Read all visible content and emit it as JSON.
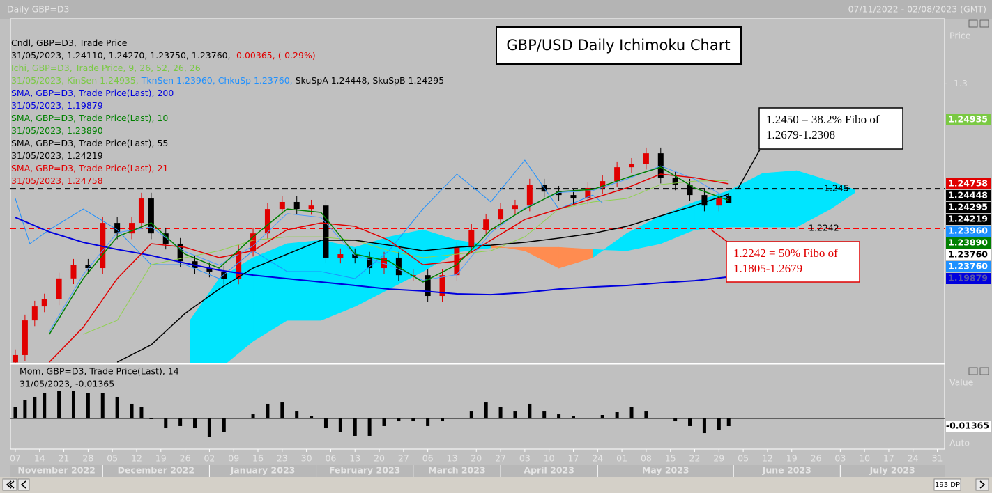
{
  "chart_data": {
    "type": "candlestick",
    "header": {
      "left": "Daily GBP=D3",
      "right": "07/11/2022 - 02/08/2023 (GMT)"
    },
    "title": "GBP/USD Daily Ichimoku Chart",
    "xlim": [
      -1,
      191.5
    ],
    "ylim": [
      1.1534,
      1.3341
    ],
    "yticks": [
      1.3
    ],
    "axis_texts": {
      "price": "Price",
      "value": "Value",
      "auto": "Auto",
      "points": "193 DP"
    },
    "xticks": [
      {
        "value": 0,
        "label": "07"
      },
      {
        "value": 5,
        "label": "14"
      },
      {
        "value": 10,
        "label": "21"
      },
      {
        "value": 15,
        "label": "28"
      },
      {
        "value": 20,
        "label": "05"
      },
      {
        "value": 25,
        "label": "12"
      },
      {
        "value": 30,
        "label": "19"
      },
      {
        "value": 35,
        "label": "26"
      },
      {
        "value": 40,
        "label": "02"
      },
      {
        "value": 45,
        "label": "09"
      },
      {
        "value": 50,
        "label": "16"
      },
      {
        "value": 55,
        "label": "23"
      },
      {
        "value": 60,
        "label": "30"
      },
      {
        "value": 65,
        "label": "06"
      },
      {
        "value": 70,
        "label": "13"
      },
      {
        "value": 75,
        "label": "20"
      },
      {
        "value": 80,
        "label": "27"
      },
      {
        "value": 85,
        "label": "06"
      },
      {
        "value": 90,
        "label": "13"
      },
      {
        "value": 95,
        "label": "20"
      },
      {
        "value": 100,
        "label": "27"
      },
      {
        "value": 105,
        "label": "03"
      },
      {
        "value": 110,
        "label": "10"
      },
      {
        "value": 115,
        "label": "17"
      },
      {
        "value": 120,
        "label": "24"
      },
      {
        "value": 125,
        "label": "01"
      },
      {
        "value": 130,
        "label": "08"
      },
      {
        "value": 135,
        "label": "15"
      },
      {
        "value": 140,
        "label": "22"
      },
      {
        "value": 145,
        "label": "29"
      },
      {
        "value": 150,
        "label": "05"
      },
      {
        "value": 155,
        "label": "12"
      },
      {
        "value": 160,
        "label": "19"
      },
      {
        "value": 165,
        "label": "26"
      },
      {
        "value": 170,
        "label": "03"
      },
      {
        "value": 175,
        "label": "10"
      },
      {
        "value": 180,
        "label": "17"
      },
      {
        "value": 185,
        "label": "24"
      },
      {
        "value": 190,
        "label": "31"
      }
    ],
    "months": [
      {
        "label": "November 2022",
        "start": -1
      },
      {
        "label": "December 2022",
        "start": 18
      },
      {
        "label": "January 2023",
        "start": 40
      },
      {
        "label": "February 2023",
        "start": 62
      },
      {
        "label": "March 2023",
        "start": 82
      },
      {
        "label": "April 2023",
        "start": 100
      },
      {
        "label": "May 2023",
        "start": 120
      },
      {
        "label": "June 2023",
        "start": 148
      },
      {
        "label": "July 2023",
        "start": 170
      }
    ],
    "candles": {
      "up_color": "#e00000",
      "down_color": "#000000",
      "x": [
        0,
        2,
        4,
        6,
        9,
        12,
        15,
        18,
        21,
        24,
        26,
        28,
        31,
        34,
        37,
        40,
        43,
        46,
        49,
        52,
        55,
        58,
        61,
        64,
        67,
        70,
        73,
        76,
        79,
        82,
        85,
        88,
        91,
        94,
        97,
        100,
        103,
        106,
        109,
        112,
        115,
        118,
        121,
        124,
        127,
        130,
        133,
        136,
        139,
        142,
        145,
        147
      ],
      "open": [
        1.154,
        1.1578,
        1.176,
        1.1833,
        1.187,
        1.198,
        1.2052,
        1.2034,
        1.2271,
        1.2216,
        1.2271,
        1.2399,
        1.2216,
        1.2162,
        1.207,
        1.2034,
        1.2016,
        1.1979,
        1.2125,
        1.2216,
        1.2344,
        1.2381,
        1.2344,
        1.2362,
        1.2089,
        1.2107,
        1.2089,
        1.2034,
        1.2089,
        1.1997,
        1.1997,
        1.1888,
        1.1997,
        1.2143,
        1.2235,
        1.2289,
        1.2344,
        1.2362,
        1.2472,
        1.2435,
        1.2417,
        1.2399,
        1.2454,
        1.249,
        1.2563,
        1.2581,
        1.2636,
        1.2508,
        1.2472,
        1.2417,
        1.2362,
        1.2411
      ],
      "high": [
        1.1608,
        1.179,
        1.1863,
        1.19,
        1.201,
        1.2082,
        1.2082,
        1.2301,
        1.2301,
        1.2301,
        1.2429,
        1.2429,
        1.2246,
        1.2192,
        1.21,
        1.2064,
        1.2046,
        1.2155,
        1.2246,
        1.2374,
        1.2411,
        1.2411,
        1.2392,
        1.2392,
        1.2137,
        1.2137,
        1.2119,
        1.2119,
        1.2119,
        1.2027,
        1.2027,
        1.2027,
        1.2173,
        1.2265,
        1.2319,
        1.2374,
        1.2392,
        1.2502,
        1.2502,
        1.2465,
        1.2447,
        1.2484,
        1.252,
        1.2593,
        1.2611,
        1.2666,
        1.2666,
        1.2538,
        1.2502,
        1.2447,
        1.2429,
        1.2427
      ],
      "low": [
        1.151,
        1.1548,
        1.173,
        1.1803,
        1.184,
        1.195,
        1.2004,
        1.2004,
        1.2186,
        1.2186,
        1.2241,
        1.2186,
        1.2132,
        1.204,
        1.2004,
        1.1986,
        1.1949,
        1.1949,
        1.2095,
        1.2186,
        1.2314,
        1.2314,
        1.2314,
        1.2059,
        1.2059,
        1.2059,
        1.2004,
        1.2004,
        1.1967,
        1.1967,
        1.1858,
        1.1858,
        1.1967,
        1.2113,
        1.2205,
        1.2259,
        1.2314,
        1.2332,
        1.2405,
        1.2387,
        1.2369,
        1.2369,
        1.2424,
        1.246,
        1.2533,
        1.2551,
        1.2478,
        1.2442,
        1.2387,
        1.2332,
        1.2332,
        1.2375
      ],
      "close": [
        1.1578,
        1.176,
        1.1833,
        1.187,
        1.198,
        1.2052,
        1.2034,
        1.2271,
        1.2216,
        1.2271,
        1.2399,
        1.2216,
        1.2162,
        1.207,
        1.2034,
        1.2016,
        1.1979,
        1.2125,
        1.2216,
        1.2344,
        1.2381,
        1.2344,
        1.2362,
        1.2089,
        1.2107,
        1.2089,
        1.2034,
        1.2089,
        1.1997,
        1.1997,
        1.1888,
        1.1997,
        1.2143,
        1.2235,
        1.2289,
        1.2344,
        1.2362,
        1.2472,
        1.2435,
        1.2417,
        1.2399,
        1.2454,
        1.249,
        1.2563,
        1.2581,
        1.2636,
        1.2508,
        1.2472,
        1.2417,
        1.2362,
        1.2399,
        1.2376
      ]
    },
    "cloud": {
      "up_color": "#00e5ff",
      "down_color": "#ff8c50",
      "x": [
        36,
        42,
        49,
        56,
        63,
        70,
        77,
        84,
        91,
        98,
        105,
        112,
        119,
        126,
        133,
        140,
        147,
        154,
        161,
        168,
        173
      ],
      "span_a": [
        1.176,
        1.1979,
        1.2089,
        1.2162,
        1.218,
        1.2143,
        1.2198,
        1.2235,
        1.218,
        1.2154,
        1.2125,
        1.2034,
        1.2089,
        1.2216,
        1.2308,
        1.2381,
        1.2439,
        1.2531,
        1.2545,
        1.249,
        1.24448
      ],
      "span_b": [
        1.1468,
        1.1505,
        1.1651,
        1.176,
        1.176,
        1.1833,
        1.1924,
        1.2016,
        1.2118,
        1.214,
        1.2143,
        1.2143,
        1.2132,
        1.2125,
        1.2162,
        1.2235,
        1.2249,
        1.2249,
        1.2249,
        1.2344,
        1.24295
      ]
    },
    "lines_x": [
      0,
      7,
      14,
      21,
      28,
      35,
      42,
      49,
      56,
      63,
      70,
      77,
      84,
      91,
      98,
      105,
      112,
      119,
      126,
      133,
      140,
      147
    ],
    "series": [
      {
        "color": "#8fd14f",
        "width": 1,
        "values": [
          null,
          null,
          1.1687,
          1.176,
          1.2052,
          1.2089,
          1.2125,
          1.218,
          1.2198,
          1.2198,
          1.218,
          1.2125,
          1.2089,
          1.2107,
          1.2125,
          1.2198,
          1.2344,
          1.2381,
          1.2399,
          1.2472,
          1.249,
          1.24935
        ]
      },
      {
        "color": "#4a9cff",
        "width": 1,
        "values": [
          null,
          1.17,
          1.2,
          1.222,
          1.225,
          1.212,
          1.205,
          1.215,
          1.232,
          1.23,
          1.21,
          1.205,
          1.197,
          1.2,
          1.222,
          1.235,
          1.243,
          1.244,
          1.25,
          1.257,
          1.25,
          1.2396
        ]
      },
      {
        "color": "#0000dd",
        "width": 2,
        "values": [
          1.23,
          1.2224,
          1.2169,
          1.2132,
          1.21,
          1.206,
          1.2023,
          1.1997,
          1.1979,
          1.1961,
          1.1943,
          1.1924,
          1.1914,
          1.1899,
          1.1895,
          1.1906,
          1.1924,
          1.1935,
          1.1943,
          1.1957,
          1.1968,
          1.19879
        ]
      },
      {
        "color": "#000000",
        "width": 1.5,
        "values": [
          null,
          null,
          null,
          1.1541,
          1.1632,
          1.1797,
          1.1924,
          1.2034,
          1.2107,
          1.218,
          1.218,
          1.2154,
          1.2125,
          1.2143,
          1.2154,
          1.2169,
          1.2191,
          1.2216,
          1.2253,
          1.2308,
          1.2362,
          1.24219
        ]
      },
      {
        "color": "#e00000",
        "width": 1.5,
        "values": [
          null,
          1.1541,
          1.1724,
          1.1979,
          1.2162,
          1.2143,
          1.2089,
          1.2125,
          1.2235,
          1.2271,
          1.2253,
          1.218,
          1.2052,
          1.207,
          1.218,
          1.2289,
          1.2344,
          1.2399,
          1.2454,
          1.2527,
          1.2508,
          1.24758
        ]
      },
      {
        "color": "#008000",
        "width": 1.5,
        "values": [
          null,
          1.1687,
          1.1979,
          1.2198,
          1.2271,
          1.2107,
          1.2034,
          1.2198,
          1.2344,
          1.2326,
          1.2107,
          1.207,
          1.1961,
          1.2052,
          1.2235,
          1.2344,
          1.2435,
          1.2446,
          1.2508,
          1.2563,
          1.2454,
          1.2389
        ]
      }
    ],
    "chikou": {
      "color": "#1e90ff",
      "x": [
        0,
        3,
        7,
        14,
        21,
        28,
        35,
        42,
        49,
        56,
        63,
        70,
        77,
        84,
        91,
        98,
        105,
        112,
        119,
        121
      ],
      "values": [
        1.2399,
        1.2162,
        1.2235,
        1.2344,
        1.2235,
        1.2052,
        1.2052,
        1.1979,
        1.2125,
        1.2016,
        1.2016,
        1.1979,
        1.2125,
        1.2344,
        1.2527,
        1.2381,
        1.26,
        1.2344,
        1.2417,
        1.2376
      ]
    },
    "hlines": [
      {
        "value": 1.245,
        "label": "1.245",
        "color": "#000000"
      },
      {
        "value": 1.2242,
        "label": "1.2242",
        "color": "#ff0000"
      }
    ],
    "annotations": [
      {
        "lines": [
          "1.2450 = 38.2% Fibo of",
          "1.2679-1.2308"
        ],
        "color": "#000000"
      },
      {
        "lines": [
          "1.2242 = 50% Fibo of",
          "1.1805-1.2679"
        ],
        "color": "#e00000"
      }
    ],
    "legend": [
      [
        {
          "text": "Cndl, GBP=D3, Trade Price",
          "color": "#000000"
        }
      ],
      [
        {
          "text": "31/05/2023, 1.24110, 1.24270, 1.23750, 1.23760, ",
          "color": "#000000"
        },
        {
          "text": "-0.00365, (-0.29%)",
          "color": "#e00000"
        }
      ],
      [
        {
          "text": "Ichi, GBP=D3, Trade Price,  9, 26, 52, 26, 26",
          "color": "#7ac943"
        }
      ],
      [
        {
          "text": "31/05/2023, KinSen 1.24935, ",
          "color": "#7ac943"
        },
        {
          "text": "TknSen 1.23960, ChkuSp 1.23760, ",
          "color": "#1e90ff"
        },
        {
          "text": "SkuSpA 1.24448, SkuSpB 1.24295",
          "color": "#000000"
        }
      ],
      [
        {
          "text": "SMA, GBP=D3, Trade Price(Last),  200",
          "color": "#0000dd"
        }
      ],
      [
        {
          "text": "31/05/2023, 1.19879",
          "color": "#0000dd"
        }
      ],
      [
        {
          "text": "SMA, GBP=D3, Trade Price(Last),  10",
          "color": "#008000"
        }
      ],
      [
        {
          "text": "31/05/2023, 1.23890",
          "color": "#008000"
        }
      ],
      [
        {
          "text": "SMA, GBP=D3, Trade Price(Last),  55",
          "color": "#000000"
        }
      ],
      [
        {
          "text": "31/05/2023, 1.24219",
          "color": "#000000"
        }
      ],
      [
        {
          "text": "SMA, GBP=D3, Trade Price(Last),  21",
          "color": "#e00000"
        }
      ],
      [
        {
          "text": "31/05/2023, 1.24758",
          "color": "#e00000"
        }
      ]
    ],
    "price_labels": [
      {
        "value": 1.24935,
        "label": "1.24935",
        "bg": "#7ac943",
        "fg": "#ffffff"
      },
      {
        "value": 1.24758,
        "label": "1.24758",
        "bg": "#e00000",
        "fg": "#ffffff"
      },
      {
        "value": 1.24448,
        "label": "1.24448",
        "bg": "#000000",
        "fg": "#ffffff"
      },
      {
        "value": 1.24295,
        "label": "1.24295",
        "bg": "#000000",
        "fg": "#ffffff"
      },
      {
        "value": 1.24219,
        "label": "1.24219",
        "bg": "#000000",
        "fg": "#ffffff"
      },
      {
        "value": 1.2396,
        "label": "1.23960",
        "bg": "#1e90ff",
        "fg": "#ffffff"
      },
      {
        "value": 1.2389,
        "label": "1.23890",
        "bg": "#008000",
        "fg": "#ffffff"
      },
      {
        "value": 1.2376,
        "label": "1.23760",
        "bg": "#ffffff",
        "fg": "#000000"
      },
      {
        "value": 1.2376,
        "label": "1.23760",
        "bg": "#1e90ff",
        "fg": "#ffffff"
      },
      {
        "value": 1.19879,
        "label": "1.19879",
        "bg": "#0000dd",
        "fg": "#5555aa"
      }
    ],
    "momentum": {
      "legend": [
        "Mom, GBP=D3, Trade Price(Last),  14",
        "31/05/2023, -0.01365"
      ],
      "ylim": [
        -0.0546,
        0.0968
      ],
      "color": "#000000",
      "values": [
        0.0199,
        0.0323,
        0.0385,
        0.0447,
        0.0484,
        0.0484,
        0.0447,
        0.0447,
        0.0385,
        0.0261,
        0.0199,
        -0.0012,
        -0.0174,
        -0.0136,
        -0.0174,
        -0.0335,
        -0.0236,
        0.0012,
        0.0074,
        0.0261,
        0.0285,
        0.0136,
        0.0037,
        -0.0174,
        -0.0236,
        -0.031,
        -0.031,
        -0.0136,
        -0.005,
        -0.005,
        -0.0136,
        -0.005,
        0.0012,
        0.0136,
        0.0285,
        0.0199,
        0.0136,
        0.0261,
        0.0136,
        0.0074,
        0.0037,
        0.0012,
        0.0062,
        0.0112,
        0.0199,
        0.0136,
        0.0012,
        -0.005,
        -0.0136,
        -0.0261,
        -0.0211,
        -0.01365
      ]
    }
  }
}
